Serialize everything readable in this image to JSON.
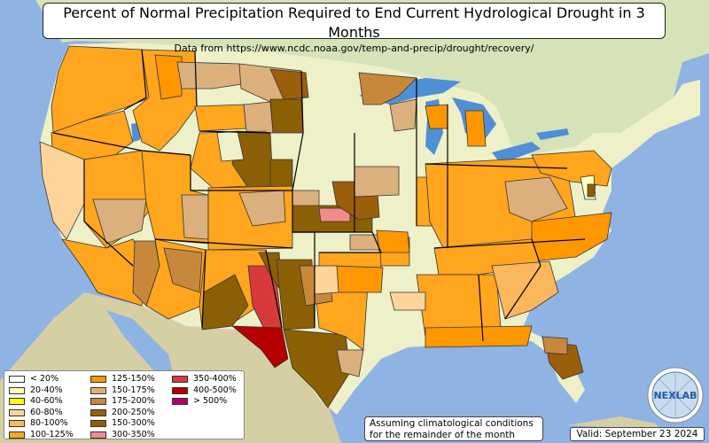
{
  "title": "Percent of Normal Precipitation Required to End Current Hydrological Drought in 3 Months",
  "subtitle": "Data from https://www.ncdc.noaa.gov/temp-and-precip/drought/recovery/",
  "legend": [
    {
      "label": "< 20%",
      "color": "#ffffff"
    },
    {
      "label": "20-40%",
      "color": "#ffffc0"
    },
    {
      "label": "40-60%",
      "color": "#ffff00"
    },
    {
      "label": "60-80%",
      "color": "#fdd59a"
    },
    {
      "label": "80-100%",
      "color": "#fcb65c"
    },
    {
      "label": "100-125%",
      "color": "#ffa51e"
    },
    {
      "label": "125-150%",
      "color": "#ff9800"
    },
    {
      "label": "150-175%",
      "color": "#dcb07c"
    },
    {
      "label": "175-200%",
      "color": "#c8883c"
    },
    {
      "label": "200-250%",
      "color": "#9b5e0a"
    },
    {
      "label": "150-300%",
      "color": "#8b6004"
    },
    {
      "label": "300-350%",
      "color": "#f48a8a"
    },
    {
      "label": "350-400%",
      "color": "#d83a3a"
    },
    {
      "label": "400-500%",
      "color": "#b40000"
    },
    {
      "label": "> 500%",
      "color": "#b4006e"
    }
  ],
  "note_line1": "Assuming climatological conditions",
  "note_line2": "for the remainder of the month",
  "valid": "Valid: September 23 2024",
  "logo_text": "NEXLAB",
  "colors": {
    "ocean": "#8fb3e3",
    "land": "#eef0c8",
    "terrain": "#cfdaa8",
    "mexico": "#d7cfa4",
    "canada": "#d6e2b8",
    "lakes": "#4f8fd6"
  }
}
